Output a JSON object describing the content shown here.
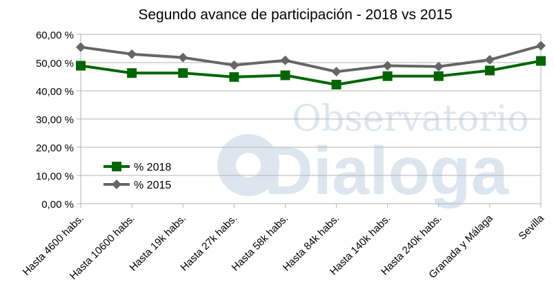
{
  "chart_data": {
    "type": "line",
    "title": "Segundo avance de participación - 2018 vs 2015",
    "xlabel": "",
    "ylabel": "",
    "ylim": [
      0,
      60
    ],
    "yticks": [
      "0,00 %",
      "10,00 %",
      "20,00 %",
      "30,00 %",
      "40,00 %",
      "50,00 %",
      "60,00 %"
    ],
    "ytick_values": [
      0,
      10,
      20,
      30,
      40,
      50,
      60
    ],
    "grid": true,
    "legend_placement": "center-left",
    "categories": [
      "Hasta 4600 habs.",
      "Hasta 10600 habs.",
      "Hasta 19k habs.",
      "Hasta 27k habs.",
      "Hasta 58k habs.",
      "Hasta 84k habs.",
      "Hasta 140k habs.",
      "Hasta 240k habs.",
      "Granada y Málaga",
      "Sevilla"
    ],
    "series": [
      {
        "name": "% 2018",
        "color": "#006600",
        "marker": "square",
        "values": [
          48.9,
          46.3,
          46.3,
          44.9,
          45.5,
          42.2,
          45.2,
          45.2,
          47.2,
          50.6
        ]
      },
      {
        "name": "% 2015",
        "color": "#666666",
        "marker": "diamond",
        "values": [
          55.5,
          53.0,
          51.8,
          49.1,
          50.8,
          46.8,
          48.9,
          48.6,
          51.0,
          56.0
        ]
      }
    ],
    "watermark": "Observatorio Dialoga"
  }
}
